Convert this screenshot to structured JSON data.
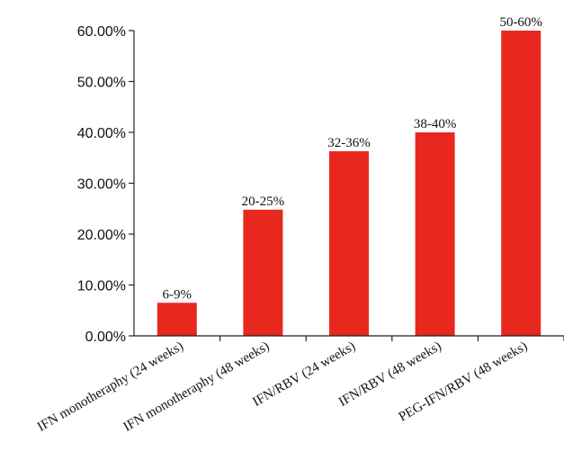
{
  "chart_data": {
    "type": "bar",
    "categories": [
      "IFN monotheraphy (24 weeks)",
      "IFN monotheraphy (48 weeks)",
      "IFN/RBV (24 weeks)",
      "IFN/RBV (48 weeks)",
      "PEG-IFN/RBV (48 weeks)"
    ],
    "values": [
      6.5,
      24.8,
      36.3,
      40.0,
      60.0
    ],
    "data_labels": [
      "6-9%",
      "20-25%",
      "32-36%",
      "38-40%",
      "50-60%"
    ],
    "yticks": [
      "0.00%",
      "10.00%",
      "20.00%",
      "30.00%",
      "40.00%",
      "50.00%",
      "60.00%"
    ],
    "ylim": [
      0,
      60
    ],
    "bar_color": "#e8281e",
    "grid": false,
    "title": "",
    "xlabel": "",
    "ylabel": ""
  }
}
